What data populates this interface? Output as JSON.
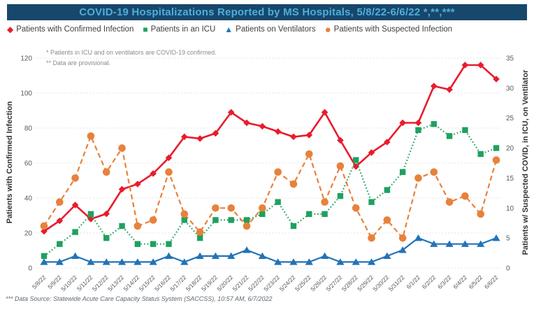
{
  "header": {
    "title": "COVID-19 Hospitalizations Reported by MS Hospitals, 5/8/22-6/6/22 *,**,***",
    "bar_color": "#17476B",
    "text_color": "#4FAEDC"
  },
  "footnotes": [
    "* Patients in ICU and on ventilators are COVID-19 confirmed.",
    "** Data are provisional."
  ],
  "source_note": "*** Data Source: Statewide Acute Care Capacity Status System (SACCSS), 10:57 AM, 6/7/2022",
  "colors": {
    "confirmed": "#E81C2C",
    "icu": "#1EA15F",
    "ventilators": "#2273B8",
    "suspected": "#E8813B",
    "grid": "#DCDCDC",
    "tick_text": "#595959",
    "x_label_text": "#595959"
  },
  "chart_data": {
    "type": "line",
    "x": [
      "5/8/22",
      "5/9/22",
      "5/10/22",
      "5/11/22",
      "5/12/22",
      "5/13/22",
      "5/14/22",
      "5/15/22",
      "5/16/22",
      "5/17/22",
      "5/18/22",
      "5/19/22",
      "5/20/22",
      "5/21/22",
      "5/22/22",
      "5/23/22",
      "5/24/22",
      "5/25/22",
      "5/26/22",
      "5/27/22",
      "5/28/22",
      "5/29/22",
      "5/30/22",
      "5/31/22",
      "6/1/22",
      "6/2/22",
      "6/3/22",
      "6/4/22",
      "6/5/22",
      "6/6/22"
    ],
    "left_axis": {
      "label": "Patients with Confirmed Infection",
      "min": 0,
      "max": 120,
      "step": 20
    },
    "right_axis": {
      "label": "Patients w/ Suspected COVID, in ICU, on Ventilator",
      "min": 0,
      "max": 35,
      "step": 5
    },
    "grid": true,
    "legend_position": "top",
    "series": [
      {
        "name": "Patients with Confirmed Infection",
        "axis": "left",
        "color": "#E81C2C",
        "marker": "diamond",
        "line": "solid",
        "values": [
          21,
          27,
          36,
          28,
          31,
          45,
          48,
          54,
          63,
          75,
          74,
          77,
          89,
          83,
          81,
          78,
          75,
          76,
          89,
          73,
          58,
          66,
          72,
          83,
          83,
          104,
          102,
          116,
          116,
          108
        ]
      },
      {
        "name": "Patients in an ICU",
        "axis": "right",
        "color": "#1EA15F",
        "marker": "square",
        "line": "dotted",
        "values": [
          2,
          4,
          6,
          9,
          5,
          7,
          4,
          4,
          4,
          8,
          5,
          8,
          8,
          8,
          9,
          11,
          7,
          9,
          9,
          12,
          18,
          11,
          13,
          16,
          23,
          24,
          22,
          23,
          19,
          20
        ]
      },
      {
        "name": "Patients on Ventilators",
        "axis": "right",
        "color": "#2273B8",
        "marker": "triangle",
        "line": "solid",
        "values": [
          1,
          1,
          2,
          1,
          1,
          1,
          1,
          1,
          2,
          1,
          2,
          2,
          2,
          3,
          2,
          1,
          1,
          1,
          2,
          1,
          1,
          1,
          2,
          3,
          5,
          4,
          4,
          4,
          4,
          5
        ]
      },
      {
        "name": "Patients with Suspected Infection",
        "axis": "right",
        "color": "#E8813B",
        "marker": "circle",
        "line": "dashed",
        "values": [
          7,
          11,
          15,
          22,
          16,
          20,
          7,
          8,
          16,
          9,
          6,
          10,
          10,
          7,
          10,
          16,
          14,
          19,
          11,
          17,
          10,
          5,
          8,
          5,
          15,
          16,
          11,
          12,
          9,
          18
        ]
      }
    ]
  }
}
